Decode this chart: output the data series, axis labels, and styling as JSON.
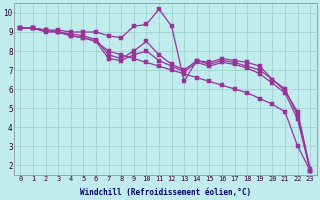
{
  "xlabel": "Windchill (Refroidissement éolien,°C)",
  "background_color": "#c0eced",
  "grid_color": "#a0d0d0",
  "line_color": "#993399",
  "x": [
    0,
    1,
    2,
    3,
    4,
    5,
    6,
    7,
    8,
    9,
    10,
    11,
    12,
    13,
    14,
    15,
    16,
    17,
    18,
    19,
    20,
    21,
    22,
    23
  ],
  "line_smooth": [
    9.2,
    9.2,
    9.1,
    9.0,
    8.8,
    8.7,
    8.5,
    8.0,
    7.8,
    7.6,
    7.4,
    7.2,
    7.0,
    6.8,
    6.6,
    6.4,
    6.2,
    6.0,
    5.8,
    5.5,
    5.2,
    4.8,
    3.0,
    1.7
  ],
  "line_spike": [
    9.2,
    9.2,
    9.1,
    9.1,
    9.0,
    9.0,
    9.0,
    8.8,
    8.7,
    9.3,
    9.4,
    10.2,
    9.3,
    6.4,
    7.5,
    7.4,
    7.6,
    7.5,
    7.4,
    7.2,
    6.5,
    5.9,
    4.8,
    1.8
  ],
  "line_mid1": [
    9.2,
    9.2,
    9.1,
    9.0,
    8.9,
    8.8,
    8.6,
    7.8,
    7.6,
    8.0,
    8.5,
    7.8,
    7.3,
    7.0,
    7.5,
    7.3,
    7.5,
    7.4,
    7.2,
    7.0,
    6.5,
    6.0,
    4.6,
    1.7
  ],
  "line_mid2": [
    9.2,
    9.2,
    9.0,
    9.0,
    8.8,
    8.7,
    8.5,
    7.6,
    7.5,
    7.8,
    8.0,
    7.5,
    7.2,
    6.9,
    7.4,
    7.2,
    7.4,
    7.3,
    7.1,
    6.8,
    6.3,
    5.8,
    4.4,
    1.7
  ],
  "ylim_min": 1.5,
  "ylim_max": 10.5,
  "xlim_min": -0.5,
  "xlim_max": 23.5,
  "yticks": [
    2,
    3,
    4,
    5,
    6,
    7,
    8,
    9,
    10
  ],
  "xticks": [
    0,
    1,
    2,
    3,
    4,
    5,
    6,
    7,
    8,
    9,
    10,
    11,
    12,
    13,
    14,
    15,
    16,
    17,
    18,
    19,
    20,
    21,
    22,
    23
  ],
  "tick_fontsize": 5.0,
  "xlabel_fontsize": 5.5,
  "marker_size": 2.5,
  "line_width": 0.9
}
